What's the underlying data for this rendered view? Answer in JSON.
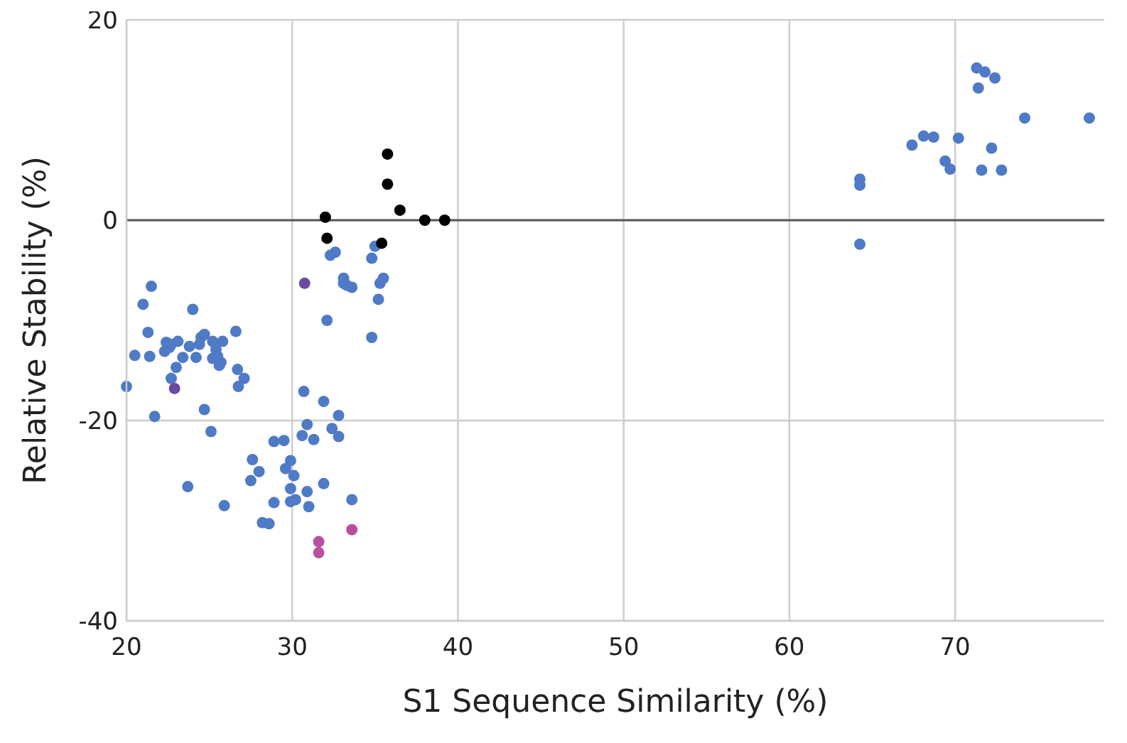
{
  "chart_data": {
    "type": "scatter",
    "xlabel": "S1 Sequence Similarity (%)",
    "ylabel": "Relative Stability  (%)",
    "xlim": [
      20,
      79
    ],
    "ylim": [
      -40,
      20
    ],
    "xticks": [
      20,
      30,
      40,
      50,
      60,
      70
    ],
    "yticks": [
      -40,
      -20,
      0,
      20
    ],
    "grid": true,
    "marker": "circle",
    "ref_lines": [
      {
        "axis": "y",
        "value": 0,
        "color": "#555555"
      }
    ],
    "series": [
      {
        "color": "#4f7ac6",
        "x": [
          71.3,
          71.8,
          72.4,
          71.4,
          74.2,
          78.1,
          68.1,
          68.7,
          67.4,
          70.2,
          72.2,
          69.4,
          69.7,
          71.6,
          72.8,
          64.25,
          64.25,
          64.25,
          35.0,
          32.6,
          32.3,
          34.8,
          33.1,
          33.3,
          33.6,
          33.1,
          35.5,
          35.3,
          35.2,
          32.1,
          34.8,
          21.5,
          21.0,
          24.0,
          21.3,
          26.6,
          22.4,
          22.7,
          23.1,
          22.6,
          22.3,
          23.8,
          24.5,
          24.7,
          25.2,
          25.8,
          24.4,
          25.4,
          25.5,
          25.2,
          25.6,
          25.7,
          20.5,
          21.4,
          23.4,
          24.2,
          23.0,
          22.7,
          26.7,
          27.1,
          26.75,
          20.0,
          21.7,
          24.7,
          25.1,
          30.7,
          31.9,
          32.8,
          30.9,
          32.4,
          32.8,
          30.6,
          31.3,
          28.9,
          29.5,
          23.7,
          25.9,
          27.6,
          28.0,
          27.5,
          29.9,
          29.6,
          30.1,
          31.9,
          29.9,
          30.9,
          28.9,
          29.9,
          30.2,
          31.0,
          33.6,
          28.2,
          28.6
        ],
        "values": [
          15.2,
          14.8,
          14.2,
          13.2,
          10.2,
          10.2,
          8.4,
          8.3,
          7.5,
          8.2,
          7.2,
          5.9,
          5.1,
          5.0,
          5.0,
          4.1,
          3.5,
          -2.4,
          -2.6,
          -3.2,
          -3.5,
          -3.8,
          -5.8,
          -6.5,
          -6.7,
          -6.3,
          -5.8,
          -6.3,
          -7.9,
          -10.0,
          -11.7,
          -6.6,
          -8.4,
          -8.9,
          -11.2,
          -11.1,
          -12.2,
          -12.4,
          -12.1,
          -12.7,
          -13.1,
          -12.6,
          -11.7,
          -11.4,
          -12.1,
          -12.1,
          -12.4,
          -12.9,
          -13.6,
          -13.8,
          -14.5,
          -14.2,
          -13.5,
          -13.6,
          -13.7,
          -13.7,
          -14.7,
          -15.8,
          -14.9,
          -15.8,
          -16.6,
          -16.6,
          -19.6,
          -18.9,
          -21.1,
          -17.1,
          -18.1,
          -19.5,
          -20.4,
          -20.8,
          -21.6,
          -21.5,
          -21.9,
          -22.1,
          -22.0,
          -26.6,
          -28.5,
          -23.9,
          -25.1,
          -26.0,
          -24.0,
          -24.8,
          -25.5,
          -26.3,
          -26.8,
          -27.1,
          -28.2,
          -28.1,
          -27.9,
          -28.6,
          -27.9,
          -30.2,
          -30.3
        ]
      },
      {
        "color": "#000000",
        "x": [
          32.0,
          32.1,
          35.75,
          35.75,
          36.5,
          38.0,
          39.2,
          35.4
        ],
        "values": [
          0.3,
          -1.8,
          6.6,
          3.6,
          1.0,
          0.0,
          0.0,
          -2.3
        ]
      },
      {
        "color": "#6a4aa0",
        "x": [
          30.75,
          22.9
        ],
        "values": [
          -6.3,
          -16.8
        ]
      },
      {
        "color": "#b94fa3",
        "x": [
          31.6,
          31.6,
          33.6
        ],
        "values": [
          -32.1,
          -33.2,
          -30.9
        ]
      }
    ]
  }
}
